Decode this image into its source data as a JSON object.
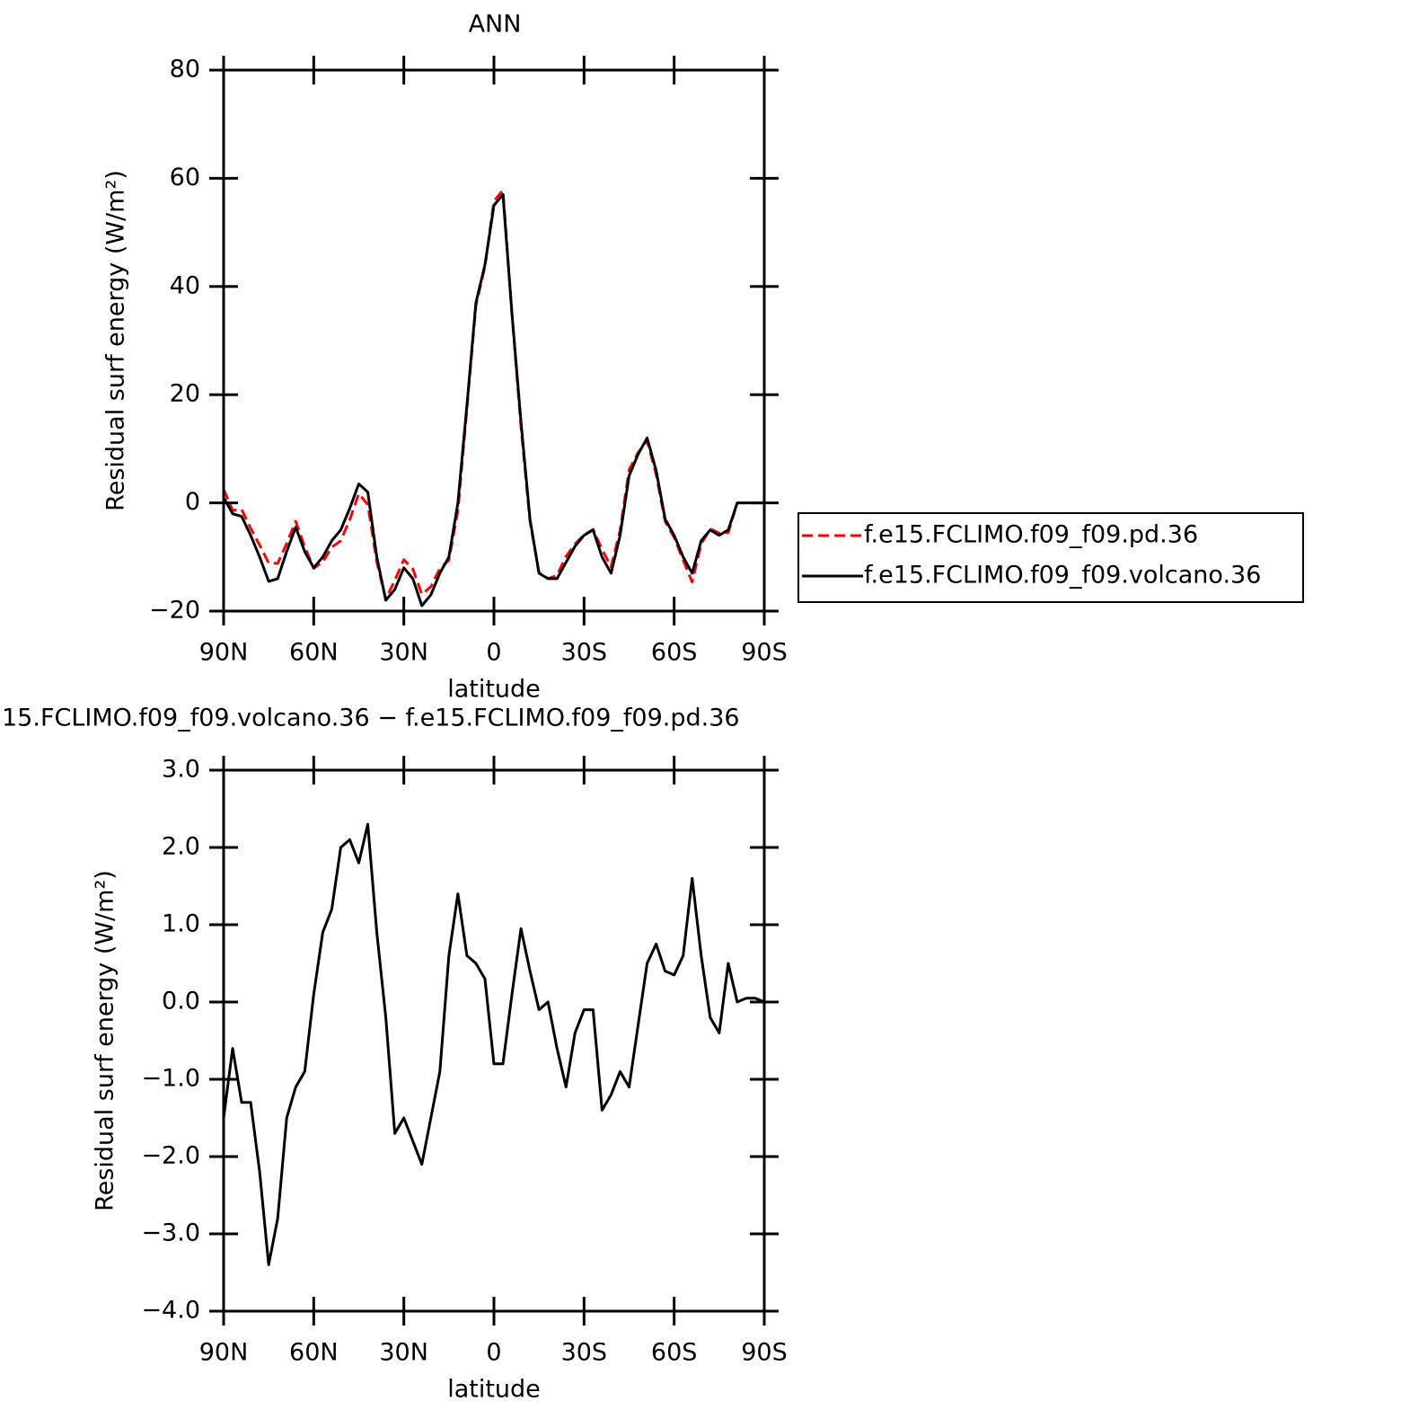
{
  "chart_data": [
    {
      "type": "line",
      "title": "ANN",
      "xlabel": "latitude",
      "ylabel": "Residual surf energy (W/m²)",
      "x": [
        90,
        87,
        84,
        81,
        78,
        75,
        72,
        69,
        66,
        63,
        60,
        57,
        54,
        51,
        48,
        45,
        42,
        39,
        36,
        33,
        30,
        27,
        24,
        21,
        18,
        15,
        12,
        9,
        6,
        3,
        0,
        -3,
        -6,
        -9,
        -12,
        -15,
        -18,
        -21,
        -24,
        -27,
        -30,
        -33,
        -36,
        -39,
        -42,
        -45,
        -48,
        -51,
        -54,
        -57,
        -60,
        -63,
        -66,
        -69,
        -72,
        -75,
        -78,
        -81,
        -84,
        -87,
        -90
      ],
      "series": [
        {
          "name": "f.e15.FCLIMO.f09_f09.pd.36",
          "color": "#ff0000",
          "dashed": true,
          "values": [
            2.5,
            -1.4,
            -1.2,
            -4.7,
            -7.8,
            -11.1,
            -11.2,
            -7.5,
            -3.4,
            -8.1,
            -12.1,
            -10.9,
            -8.2,
            -7,
            -3.1,
            1.7,
            -0.3,
            -10.9,
            -17.8,
            -14.3,
            -10.5,
            -12.2,
            -16.9,
            -15.5,
            -12.1,
            -10.6,
            -1.4,
            17.4,
            36.5,
            43.7,
            55.8,
            57.8,
            34.9,
            14.1,
            -3.4,
            -12.9,
            -14,
            -13.4,
            -9.9,
            -7.6,
            -5.9,
            -4.9,
            -8.6,
            -11.8,
            -5.1,
            6.1,
            9.3,
            11.5,
            5.3,
            -3.4,
            -6.4,
            -10.6,
            -14.6,
            -7.6,
            -4.8,
            -5.6,
            -5.5,
            0,
            0,
            0,
            0
          ]
        },
        {
          "name": "f.e15.FCLIMO.f09_f09.volcano.36",
          "color": "#000000",
          "dashed": false,
          "values": [
            1,
            -2,
            -2.5,
            -6,
            -10,
            -14.5,
            -14,
            -9,
            -4.5,
            -9,
            -12,
            -10,
            -7,
            -5,
            -1,
            3.5,
            2,
            -10,
            -18,
            -16,
            -12,
            -14,
            -19,
            -17,
            -13,
            -10,
            0,
            18,
            37,
            44,
            55,
            57,
            35,
            15,
            -3,
            -13,
            -14,
            -14,
            -11,
            -8,
            -6,
            -5,
            -10,
            -13,
            -6,
            5,
            9,
            12,
            6,
            -3,
            -6,
            -10,
            -13,
            -7,
            -5,
            -6,
            -5,
            0,
            0,
            0,
            0
          ]
        }
      ],
      "xlim": [
        90,
        -90
      ],
      "xticks": [
        {
          "value": 90,
          "label": "90N"
        },
        {
          "value": 60,
          "label": "60N"
        },
        {
          "value": 30,
          "label": "30N"
        },
        0,
        {
          "value": -30,
          "label": "30S"
        },
        {
          "value": -60,
          "label": "60S"
        },
        {
          "value": -90,
          "label": "90S"
        }
      ],
      "ylim": [
        -20,
        80
      ],
      "yticks": [
        {
          "value": -20,
          "label": "−20"
        },
        0,
        20,
        40,
        60,
        80
      ],
      "legend": "outside-right"
    },
    {
      "type": "line",
      "title": "15.FCLIMO.f09_f09.volcano.36 − f.e15.FCLIMO.f09_f09.pd.36",
      "xlabel": "latitude",
      "ylabel": "Residual surf energy (W/m²)",
      "x": [
        90,
        87,
        84,
        81,
        78,
        75,
        72,
        69,
        66,
        63,
        60,
        57,
        54,
        51,
        48,
        45,
        42,
        39,
        36,
        33,
        30,
        27,
        24,
        21,
        18,
        15,
        12,
        9,
        6,
        3,
        0,
        -3,
        -6,
        -9,
        -12,
        -15,
        -18,
        -21,
        -24,
        -27,
        -30,
        -33,
        -36,
        -39,
        -42,
        -45,
        -48,
        -51,
        -54,
        -57,
        -60,
        -63,
        -66,
        -69,
        -72,
        -75,
        -78,
        -81,
        -84,
        -87,
        -90
      ],
      "series": [
        {
          "color": "#000000",
          "dashed": false,
          "values": [
            -1.5,
            -0.6,
            -1.3,
            -1.3,
            -2.2,
            -3.4,
            -2.8,
            -1.5,
            -1.1,
            -0.9,
            0.1,
            0.9,
            1.2,
            2.0,
            2.1,
            1.8,
            2.3,
            0.9,
            -0.2,
            -1.7,
            -1.5,
            -1.8,
            -2.1,
            -1.5,
            -0.9,
            0.6,
            1.4,
            0.6,
            0.5,
            0.3,
            -0.8,
            -0.8,
            0.1,
            0.95,
            0.4,
            -0.1,
            0,
            -0.6,
            -1.1,
            -0.4,
            -0.1,
            -0.1,
            -1.4,
            -1.2,
            -0.9,
            -1.1,
            -0.3,
            0.5,
            0.75,
            0.4,
            0.35,
            0.6,
            1.6,
            0.6,
            -0.2,
            -0.4,
            0.5,
            0,
            0.05,
            0.05,
            0
          ]
        }
      ],
      "xlim": [
        90,
        -90
      ],
      "xticks": [
        {
          "value": 90,
          "label": "90N"
        },
        {
          "value": 60,
          "label": "60N"
        },
        {
          "value": 30,
          "label": "30N"
        },
        0,
        {
          "value": -30,
          "label": "30S"
        },
        {
          "value": -60,
          "label": "60S"
        },
        {
          "value": -90,
          "label": "90S"
        }
      ],
      "ylim": [
        -4,
        3
      ],
      "yticks": [
        {
          "value": -4,
          "label": "−4.0"
        },
        {
          "value": -3,
          "label": "−3.0"
        },
        {
          "value": -2,
          "label": "−2.0"
        },
        {
          "value": -1,
          "label": "−1.0"
        },
        {
          "value": 0,
          "label": "0.0"
        },
        {
          "value": 1,
          "label": "1.0"
        },
        {
          "value": 2,
          "label": "2.0"
        },
        {
          "value": 3,
          "label": "3.0"
        }
      ]
    }
  ]
}
